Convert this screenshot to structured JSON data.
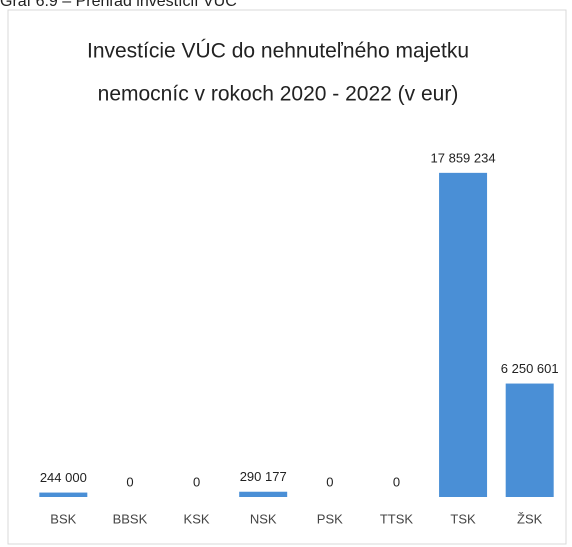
{
  "caption": "Graf 6.9 – Prehľad investícií VÚC",
  "chart_data": {
    "type": "bar",
    "title": [
      "Investície  VÚC do nehnuteľného majetku",
      "nemocníc v rokoch 2020 - 2022 (v eur)"
    ],
    "categories": [
      "BSK",
      "BBSK",
      "KSK",
      "NSK",
      "PSK",
      "TTSK",
      "TSK",
      "ŽSK"
    ],
    "values": [
      244000,
      0,
      0,
      290177,
      0,
      0,
      17859234,
      6250601
    ],
    "value_labels": [
      "244 000",
      "0",
      "0",
      "290 177",
      "0",
      "0",
      "17 859 234",
      "6 250 601"
    ],
    "color": "#4a8fd6",
    "ylim": [
      0,
      20000000
    ]
  }
}
